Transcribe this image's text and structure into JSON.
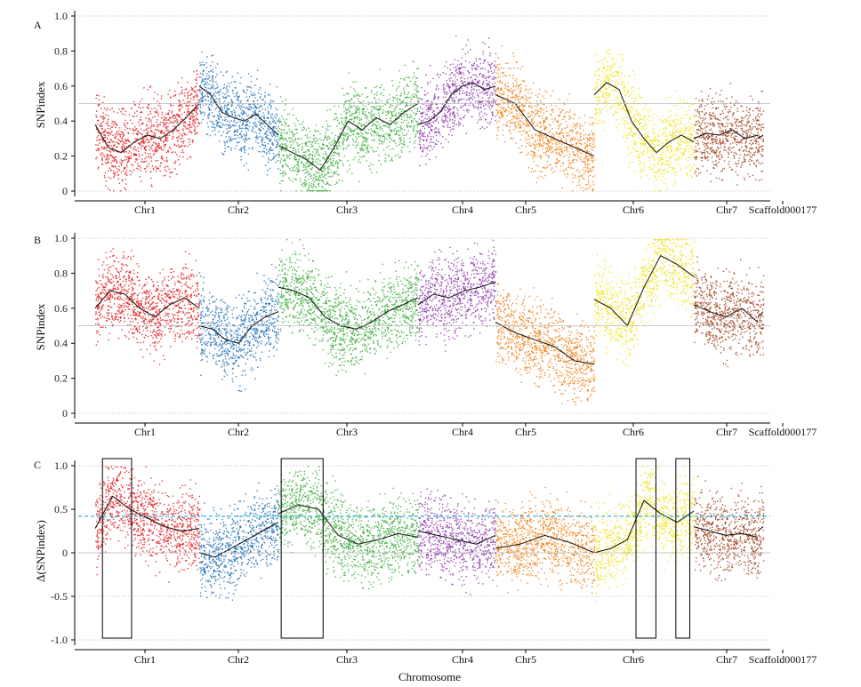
{
  "chart_data": {
    "type": "scatter",
    "xlabel": "Chromosome",
    "chromosomes": [
      "Chr1",
      "Chr2",
      "Chr3",
      "Chr4",
      "Chr5",
      "Chr6",
      "Chr7",
      "Scaffold000177"
    ],
    "colors": [
      "#e41a1c",
      "#1f6fb5",
      "#3aab3a",
      "#8e3aa8",
      "#f07f13",
      "#f0e424",
      "#9c3f1a",
      "#9c3f1a"
    ],
    "panels": [
      {
        "letter": "A",
        "ylabel": "SNPindex",
        "ylim": [
          0,
          1
        ],
        "yticks": [
          "1.0",
          "0.8",
          "0.6",
          "0.4",
          "0.2",
          "0"
        ],
        "ytick_values": [
          1.0,
          0.8,
          0.6,
          0.4,
          0.2,
          0
        ],
        "threshold_lines": [
          0.5
        ],
        "grid_lines": [
          1.0,
          0
        ],
        "series": [
          {
            "chr": "Chr1",
            "trend": [
              0.38,
              0.25,
              0.22,
              0.28,
              0.32,
              0.3,
              0.35,
              0.42,
              0.5
            ]
          },
          {
            "chr": "Chr2",
            "trend": [
              0.6,
              0.55,
              0.45,
              0.42,
              0.4,
              0.44,
              0.38,
              0.32
            ]
          },
          {
            "chr": "Chr3",
            "trend": [
              0.26,
              0.22,
              0.18,
              0.12,
              0.25,
              0.4,
              0.35,
              0.42,
              0.38,
              0.45,
              0.5
            ]
          },
          {
            "chr": "Chr4",
            "trend": [
              0.38,
              0.4,
              0.45,
              0.55,
              0.6,
              0.62,
              0.58,
              0.6
            ]
          },
          {
            "chr": "Chr5",
            "trend": [
              0.55,
              0.5,
              0.35,
              0.3,
              0.25,
              0.2
            ]
          },
          {
            "chr": "Chr6",
            "trend": [
              0.55,
              0.62,
              0.58,
              0.4,
              0.3,
              0.22,
              0.28,
              0.32,
              0.28
            ]
          },
          {
            "chr": "Chr7",
            "trend": [
              0.3,
              0.33,
              0.32,
              0.35,
              0.3,
              0.32
            ]
          },
          {
            "chr": "Scaffold000177",
            "trend": [
              0.3,
              0.32
            ]
          }
        ]
      },
      {
        "letter": "B",
        "ylabel": "SNPindex",
        "ylim": [
          0,
          1
        ],
        "yticks": [
          "1.0",
          "0.8",
          "0.6",
          "0.4",
          "0.2",
          "0"
        ],
        "ytick_values": [
          1.0,
          0.8,
          0.6,
          0.4,
          0.2,
          0
        ],
        "threshold_lines": [
          0.5
        ],
        "grid_lines": [
          1.0,
          0
        ],
        "series": [
          {
            "chr": "Chr1",
            "trend": [
              0.6,
              0.7,
              0.68,
              0.6,
              0.55,
              0.62,
              0.66,
              0.6
            ]
          },
          {
            "chr": "Chr2",
            "trend": [
              0.5,
              0.48,
              0.42,
              0.4,
              0.5,
              0.55,
              0.58
            ]
          },
          {
            "chr": "Chr3",
            "trend": [
              0.72,
              0.7,
              0.66,
              0.55,
              0.5,
              0.48,
              0.52,
              0.58,
              0.62,
              0.66
            ]
          },
          {
            "chr": "Chr4",
            "trend": [
              0.62,
              0.68,
              0.66,
              0.7,
              0.72,
              0.75
            ]
          },
          {
            "chr": "Chr5",
            "trend": [
              0.52,
              0.46,
              0.42,
              0.38,
              0.3,
              0.28
            ]
          },
          {
            "chr": "Chr6",
            "trend": [
              0.65,
              0.6,
              0.5,
              0.72,
              0.9,
              0.85,
              0.78
            ]
          },
          {
            "chr": "Chr7",
            "trend": [
              0.62,
              0.58,
              0.55,
              0.6,
              0.52
            ]
          },
          {
            "chr": "Scaffold000177",
            "trend": [
              0.55,
              0.58
            ]
          }
        ]
      },
      {
        "letter": "C",
        "ylabel": "Δ(SNPindex)",
        "ylim": [
          -1,
          1
        ],
        "yticks": [
          "1.0",
          "0.5",
          "0",
          "-0.5",
          "-1.0"
        ],
        "ytick_values": [
          1.0,
          0.5,
          0,
          -0.5,
          -1.0
        ],
        "threshold_lines": [
          0.42,
          0
        ],
        "grid_lines": [
          1.0,
          0,
          -0.5,
          -1.0
        ],
        "highlight_boxes": [
          {
            "chr": "Chr1",
            "from": 0.07,
            "to": 0.35
          },
          {
            "chr": "Chr3",
            "from": 0.02,
            "to": 0.32
          },
          {
            "chr": "Chr6",
            "from": 0.42,
            "to": 0.62
          },
          {
            "chr": "Chr6",
            "from": 0.82,
            "to": 0.96
          }
        ],
        "series": [
          {
            "chr": "Chr1",
            "trend": [
              0.28,
              0.65,
              0.5,
              0.4,
              0.3,
              0.25,
              0.28
            ]
          },
          {
            "chr": "Chr2",
            "trend": [
              0.0,
              -0.05,
              0.05,
              0.15,
              0.25,
              0.35
            ]
          },
          {
            "chr": "Chr3",
            "trend": [
              0.45,
              0.55,
              0.5,
              0.2,
              0.1,
              0.15,
              0.22,
              0.18
            ]
          },
          {
            "chr": "Chr4",
            "trend": [
              0.25,
              0.2,
              0.15,
              0.1,
              0.2
            ]
          },
          {
            "chr": "Chr5",
            "trend": [
              0.05,
              0.1,
              0.2,
              0.12,
              0.0
            ]
          },
          {
            "chr": "Chr6",
            "trend": [
              0.0,
              0.05,
              0.15,
              0.6,
              0.45,
              0.35,
              0.48
            ]
          },
          {
            "chr": "Chr7",
            "trend": [
              0.3,
              0.25,
              0.2,
              0.22,
              0.18
            ]
          },
          {
            "chr": "Scaffold000177",
            "trend": [
              0.25,
              0.3
            ]
          }
        ]
      }
    ]
  }
}
